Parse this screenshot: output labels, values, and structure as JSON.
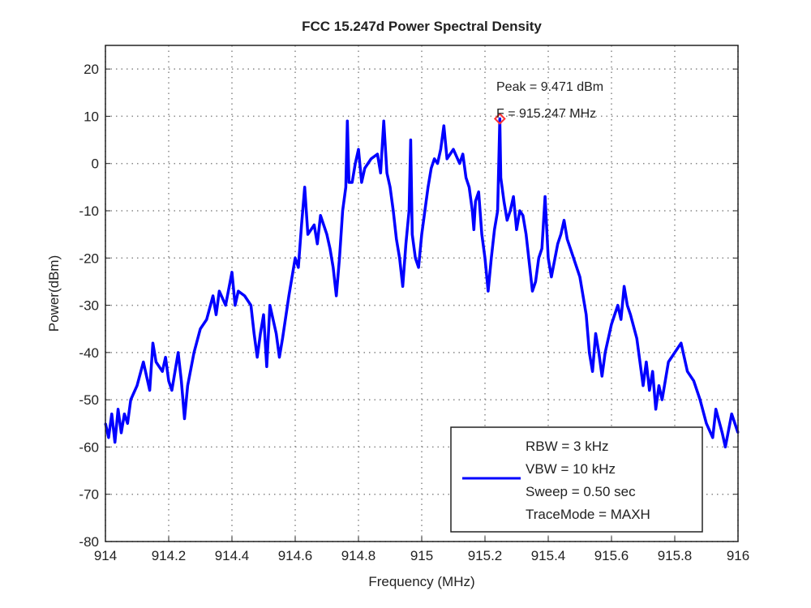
{
  "chart_data": {
    "type": "line",
    "title": "FCC 15.247d Power Spectral Density",
    "xlabel": "Frequency (MHz)",
    "ylabel": "Power(dBm)",
    "xlim": [
      914,
      916
    ],
    "ylim": [
      -80,
      25
    ],
    "grid": true,
    "xticks": [
      "914",
      "914.2",
      "914.4",
      "914.6",
      "914.8",
      "915",
      "915.2",
      "915.4",
      "915.6",
      "915.8",
      "916"
    ],
    "yticks": [
      "20",
      "10",
      "0",
      "-10",
      "-20",
      "-30",
      "-40",
      "-50",
      "-60",
      "-70",
      "-80"
    ],
    "series_color": "#0000ff",
    "marker_color": "#ff3333",
    "legend": {
      "placement": "bottom-right",
      "lines": [
        "RBW = 3 kHz",
        "VBW = 10 kHz",
        "Sweep = 0.50 sec",
        "TraceMode = MAXH"
      ]
    },
    "peak": {
      "freq": 915.247,
      "power": 9.471,
      "label_power": "Peak =  9.471 dBm",
      "label_freq": "F = 915.247 MHz"
    },
    "x": [
      914.0,
      914.01,
      914.02,
      914.03,
      914.04,
      914.05,
      914.06,
      914.07,
      914.08,
      914.1,
      914.12,
      914.13,
      914.14,
      914.15,
      914.16,
      914.18,
      914.19,
      914.2,
      914.21,
      914.22,
      914.23,
      914.24,
      914.25,
      914.26,
      914.28,
      914.3,
      914.32,
      914.34,
      914.35,
      914.36,
      914.38,
      914.4,
      914.41,
      914.42,
      914.44,
      914.46,
      914.47,
      914.48,
      914.49,
      914.5,
      914.51,
      914.52,
      914.54,
      914.55,
      914.56,
      914.58,
      914.6,
      914.61,
      914.62,
      914.63,
      914.64,
      914.66,
      914.67,
      914.68,
      914.7,
      914.71,
      914.72,
      914.73,
      914.74,
      914.75,
      914.76,
      914.765,
      914.77,
      914.78,
      914.79,
      914.8,
      914.81,
      914.82,
      914.84,
      914.86,
      914.87,
      914.88,
      914.89,
      914.9,
      914.91,
      914.92,
      914.93,
      914.94,
      914.95,
      914.96,
      914.965,
      914.97,
      914.98,
      914.99,
      915.0,
      915.01,
      915.02,
      915.03,
      915.04,
      915.05,
      915.06,
      915.07,
      915.08,
      915.1,
      915.12,
      915.13,
      915.14,
      915.15,
      915.16,
      915.165,
      915.17,
      915.18,
      915.19,
      915.2,
      915.21,
      915.22,
      915.23,
      915.24,
      915.247,
      915.25,
      915.26,
      915.27,
      915.28,
      915.29,
      915.3,
      915.31,
      915.32,
      915.33,
      915.35,
      915.36,
      915.37,
      915.38,
      915.39,
      915.4,
      915.41,
      915.43,
      915.44,
      915.45,
      915.46,
      915.47,
      915.5,
      915.52,
      915.53,
      915.54,
      915.55,
      915.56,
      915.57,
      915.58,
      915.6,
      915.62,
      915.63,
      915.64,
      915.65,
      915.66,
      915.68,
      915.7,
      915.71,
      915.72,
      915.73,
      915.74,
      915.75,
      915.76,
      915.78,
      915.8,
      915.82,
      915.84,
      915.86,
      915.88,
      915.9,
      915.92,
      915.93,
      915.95,
      915.96,
      915.98,
      916.0
    ],
    "y": [
      -55,
      -58,
      -53,
      -59,
      -52,
      -57,
      -53,
      -55,
      -50,
      -47,
      -42,
      -45,
      -48,
      -38,
      -42,
      -44,
      -41,
      -46,
      -48,
      -44,
      -40,
      -46,
      -54,
      -47,
      -40,
      -35,
      -33,
      -28,
      -32,
      -27,
      -30,
      -23,
      -30,
      -27,
      -28,
      -30,
      -36,
      -41,
      -36,
      -32,
      -43,
      -30,
      -36,
      -41,
      -37,
      -28,
      -20,
      -22,
      -13,
      -5,
      -15,
      -13,
      -17,
      -11,
      -15,
      -18,
      -22,
      -28,
      -20,
      -10,
      -5,
      9,
      -4,
      -4,
      0,
      3,
      -4,
      -1,
      1,
      2,
      -2,
      9,
      -2,
      -5,
      -10,
      -16,
      -20,
      -26,
      -17,
      -10,
      5,
      -15,
      -20,
      -22,
      -15,
      -10,
      -5,
      -1,
      1,
      0,
      3,
      8,
      1,
      3,
      0,
      2,
      -3,
      -5,
      -10,
      -14,
      -8,
      -6,
      -15,
      -20,
      -27,
      -20,
      -14,
      -10,
      9.471,
      -3,
      -8,
      -12,
      -10,
      -7,
      -14,
      -10,
      -11,
      -15,
      -27,
      -25,
      -20,
      -18,
      -7,
      -20,
      -24,
      -17,
      -15,
      -12,
      -16,
      -18,
      -24,
      -32,
      -40,
      -44,
      -36,
      -40,
      -45,
      -40,
      -34,
      -30,
      -33,
      -26,
      -30,
      -32,
      -37,
      -47,
      -42,
      -48,
      -44,
      -52,
      -47,
      -50,
      -42,
      -40,
      -38,
      -44,
      -46,
      -50,
      -55,
      -58,
      -52,
      -57,
      -60,
      -53,
      -57
    ]
  }
}
